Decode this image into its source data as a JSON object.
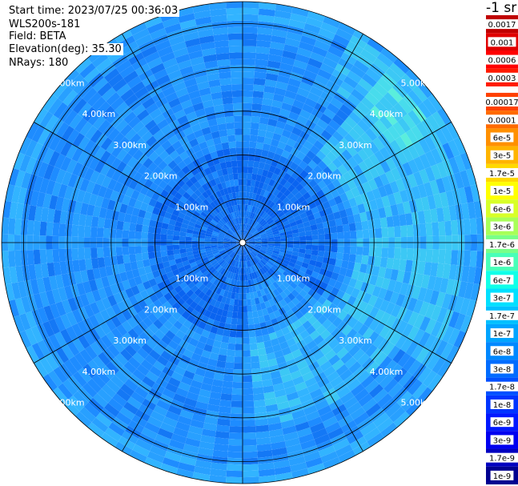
{
  "info": {
    "start_time": "Start time: 2023/07/25 00:36:03",
    "instrument": "WLS200s-181",
    "field": "Field: BETA",
    "elevation": "Elevation(deg): 35.30",
    "nrays": "NRays: 180"
  },
  "chart_data": {
    "type": "heatmap",
    "subtype": "polar-ppi",
    "range_max_km": 5.5,
    "range_rings_km": [
      1,
      2,
      3,
      4,
      5
    ],
    "ring_labels": [
      "1.00km",
      "2.00km",
      "3.00km",
      "4.00km",
      "5.00km"
    ],
    "azimuth_lines_deg": [
      0,
      30,
      60,
      90,
      120,
      150,
      180,
      210,
      240,
      270,
      300,
      330
    ],
    "nrays": 180,
    "colorbar": {
      "title": "-1 sr",
      "ticks": [
        "0.0017",
        "0.001",
        "0.0006",
        "0.0003",
        "0.00017",
        "0.0001",
        "6e-5",
        "3e-5",
        "1.7e-5",
        "1e-5",
        "6e-6",
        "3e-6",
        "1.7e-6",
        "1e-6",
        "6e-7",
        "3e-7",
        "1.7e-7",
        "1e-7",
        "6e-8",
        "3e-8",
        "1.7e-8",
        "1e-8",
        "6e-9",
        "3e-9",
        "1.7e-9",
        "1e-9"
      ],
      "colors": [
        "#c00000",
        "#e00000",
        "#ff0000",
        "#ff1a00",
        "#ff4000",
        "#ff6a00",
        "#ff9000",
        "#ffb400",
        "#ffd800",
        "#ffff00",
        "#d8ff28",
        "#a8ff58",
        "#78ff88",
        "#48ffb8",
        "#10ffe8",
        "#00e0ff",
        "#00c0ff",
        "#00a4ff",
        "#0088ff",
        "#006cff",
        "#0050ff",
        "#0034ff",
        "#0018ff",
        "#0000f0",
        "#0000c0",
        "#000090"
      ],
      "gap_after_index": 3
    },
    "colors": {
      "background_field": "#1e90ff",
      "near_field": "#0a64f0",
      "enhanced": "#3ce8e0"
    }
  }
}
